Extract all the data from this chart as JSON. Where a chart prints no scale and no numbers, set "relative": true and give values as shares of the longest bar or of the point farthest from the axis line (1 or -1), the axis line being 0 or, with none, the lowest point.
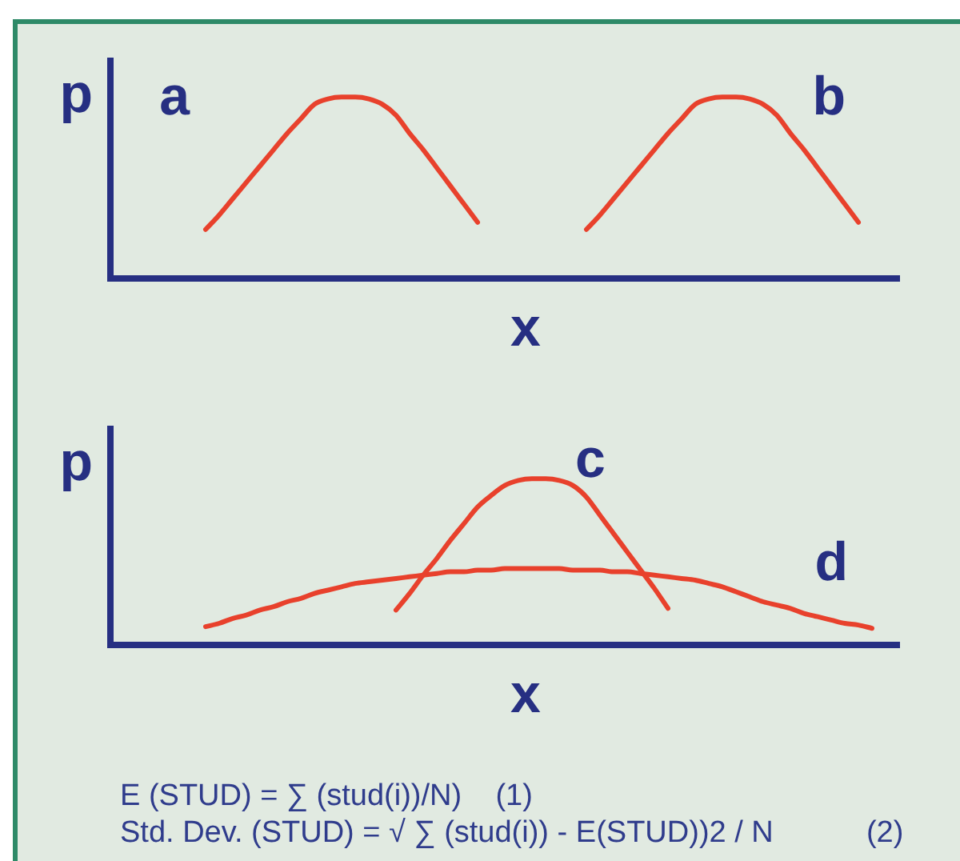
{
  "chart_data": [
    {
      "type": "line",
      "relative": true,
      "xlabel": "x",
      "ylabel": "p",
      "legend": false,
      "categories": [
        null,
        null,
        null,
        null,
        null,
        null,
        null,
        null,
        null,
        null,
        null,
        null,
        null,
        null,
        null,
        null,
        null,
        null,
        null,
        null,
        null,
        null,
        null,
        null,
        null,
        null,
        null,
        null,
        null,
        null,
        null,
        null,
        null,
        null,
        null,
        null,
        null,
        null,
        null,
        null,
        null,
        null,
        null,
        null,
        null,
        null,
        null,
        null,
        null,
        null,
        null,
        null,
        null,
        null,
        null,
        null,
        null,
        null,
        null
      ],
      "series": [
        {
          "name": "a",
          "color": "#e8412c",
          "values": [
            null,
            null,
            null,
            null,
            null,
            null,
            null,
            0.27,
            0.35,
            0.44,
            0.53,
            0.62,
            0.71,
            0.8,
            0.88,
            0.96,
            0.99,
            1,
            1,
            0.99,
            0.96,
            0.9,
            0.8,
            0.71,
            0.61,
            0.51,
            0.41,
            0.31,
            null,
            null,
            null,
            null,
            null,
            null,
            null,
            null,
            null,
            null,
            null,
            null,
            null,
            null,
            null,
            null,
            null,
            null,
            null,
            null,
            null,
            null,
            null,
            null,
            null,
            null,
            null,
            null,
            null,
            null,
            null
          ]
        },
        {
          "name": "b",
          "color": "#e8412c",
          "values": [
            null,
            null,
            null,
            null,
            null,
            null,
            null,
            null,
            null,
            null,
            null,
            null,
            null,
            null,
            null,
            null,
            null,
            null,
            null,
            null,
            null,
            null,
            null,
            null,
            null,
            null,
            null,
            null,
            null,
            null,
            null,
            null,
            null,
            null,
            null,
            0.27,
            0.35,
            0.44,
            0.53,
            0.62,
            0.71,
            0.8,
            0.88,
            0.96,
            0.99,
            1,
            1,
            0.99,
            0.96,
            0.9,
            0.8,
            0.71,
            0.61,
            0.51,
            0.41,
            0.31,
            null,
            null,
            null
          ]
        }
      ]
    },
    {
      "type": "line",
      "relative": true,
      "xlabel": "x",
      "ylabel": "p",
      "legend": false,
      "categories": [
        null,
        null,
        null,
        null,
        null,
        null,
        null,
        null,
        null,
        null,
        null,
        null,
        null,
        null,
        null,
        null,
        null,
        null,
        null,
        null,
        null,
        null,
        null,
        null,
        null,
        null,
        null,
        null,
        null,
        null,
        null,
        null,
        null,
        null,
        null,
        null,
        null,
        null,
        null,
        null,
        null,
        null,
        null,
        null,
        null,
        null,
        null,
        null,
        null,
        null,
        null,
        null,
        null,
        null,
        null,
        null,
        null,
        null,
        null
      ],
      "series": [
        {
          "name": "c",
          "color": "#e8412c",
          "values": [
            null,
            null,
            null,
            null,
            null,
            null,
            null,
            null,
            null,
            null,
            null,
            null,
            null,
            null,
            null,
            null,
            null,
            null,
            null,
            null,
            null,
            0.21,
            0.31,
            0.42,
            0.52,
            0.63,
            0.73,
            0.83,
            0.9,
            0.96,
            0.99,
            1,
            1,
            0.99,
            0.96,
            0.89,
            0.78,
            0.67,
            0.56,
            0.45,
            0.34,
            0.22,
            null,
            null,
            null,
            null,
            null,
            null,
            null,
            null,
            null,
            null,
            null,
            null,
            null,
            null,
            null,
            null,
            null
          ]
        },
        {
          "name": "d",
          "color": "#e8412c",
          "values": [
            null,
            null,
            null,
            null,
            null,
            null,
            null,
            0.11,
            0.13,
            0.16,
            0.18,
            0.21,
            0.23,
            0.26,
            0.28,
            0.31,
            0.33,
            0.35,
            0.37,
            0.38,
            0.39,
            0.4,
            0.41,
            0.42,
            0.43,
            0.44,
            0.44,
            0.45,
            0.45,
            0.46,
            0.46,
            0.46,
            0.46,
            0.46,
            0.45,
            0.45,
            0.45,
            0.44,
            0.44,
            0.43,
            0.42,
            0.41,
            0.4,
            0.39,
            0.37,
            0.35,
            0.32,
            0.29,
            0.26,
            0.24,
            0.22,
            0.19,
            0.17,
            0.15,
            0.13,
            0.12,
            0.1,
            null,
            null
          ]
        }
      ],
      "annotations": [
        "E (STUD) = ∑ (stud(i))/N)    (1)",
        "Std. Dev. (STUD) = √ ∑ (stud(i)) - E(STUD))2 / N           (2)"
      ]
    }
  ]
}
